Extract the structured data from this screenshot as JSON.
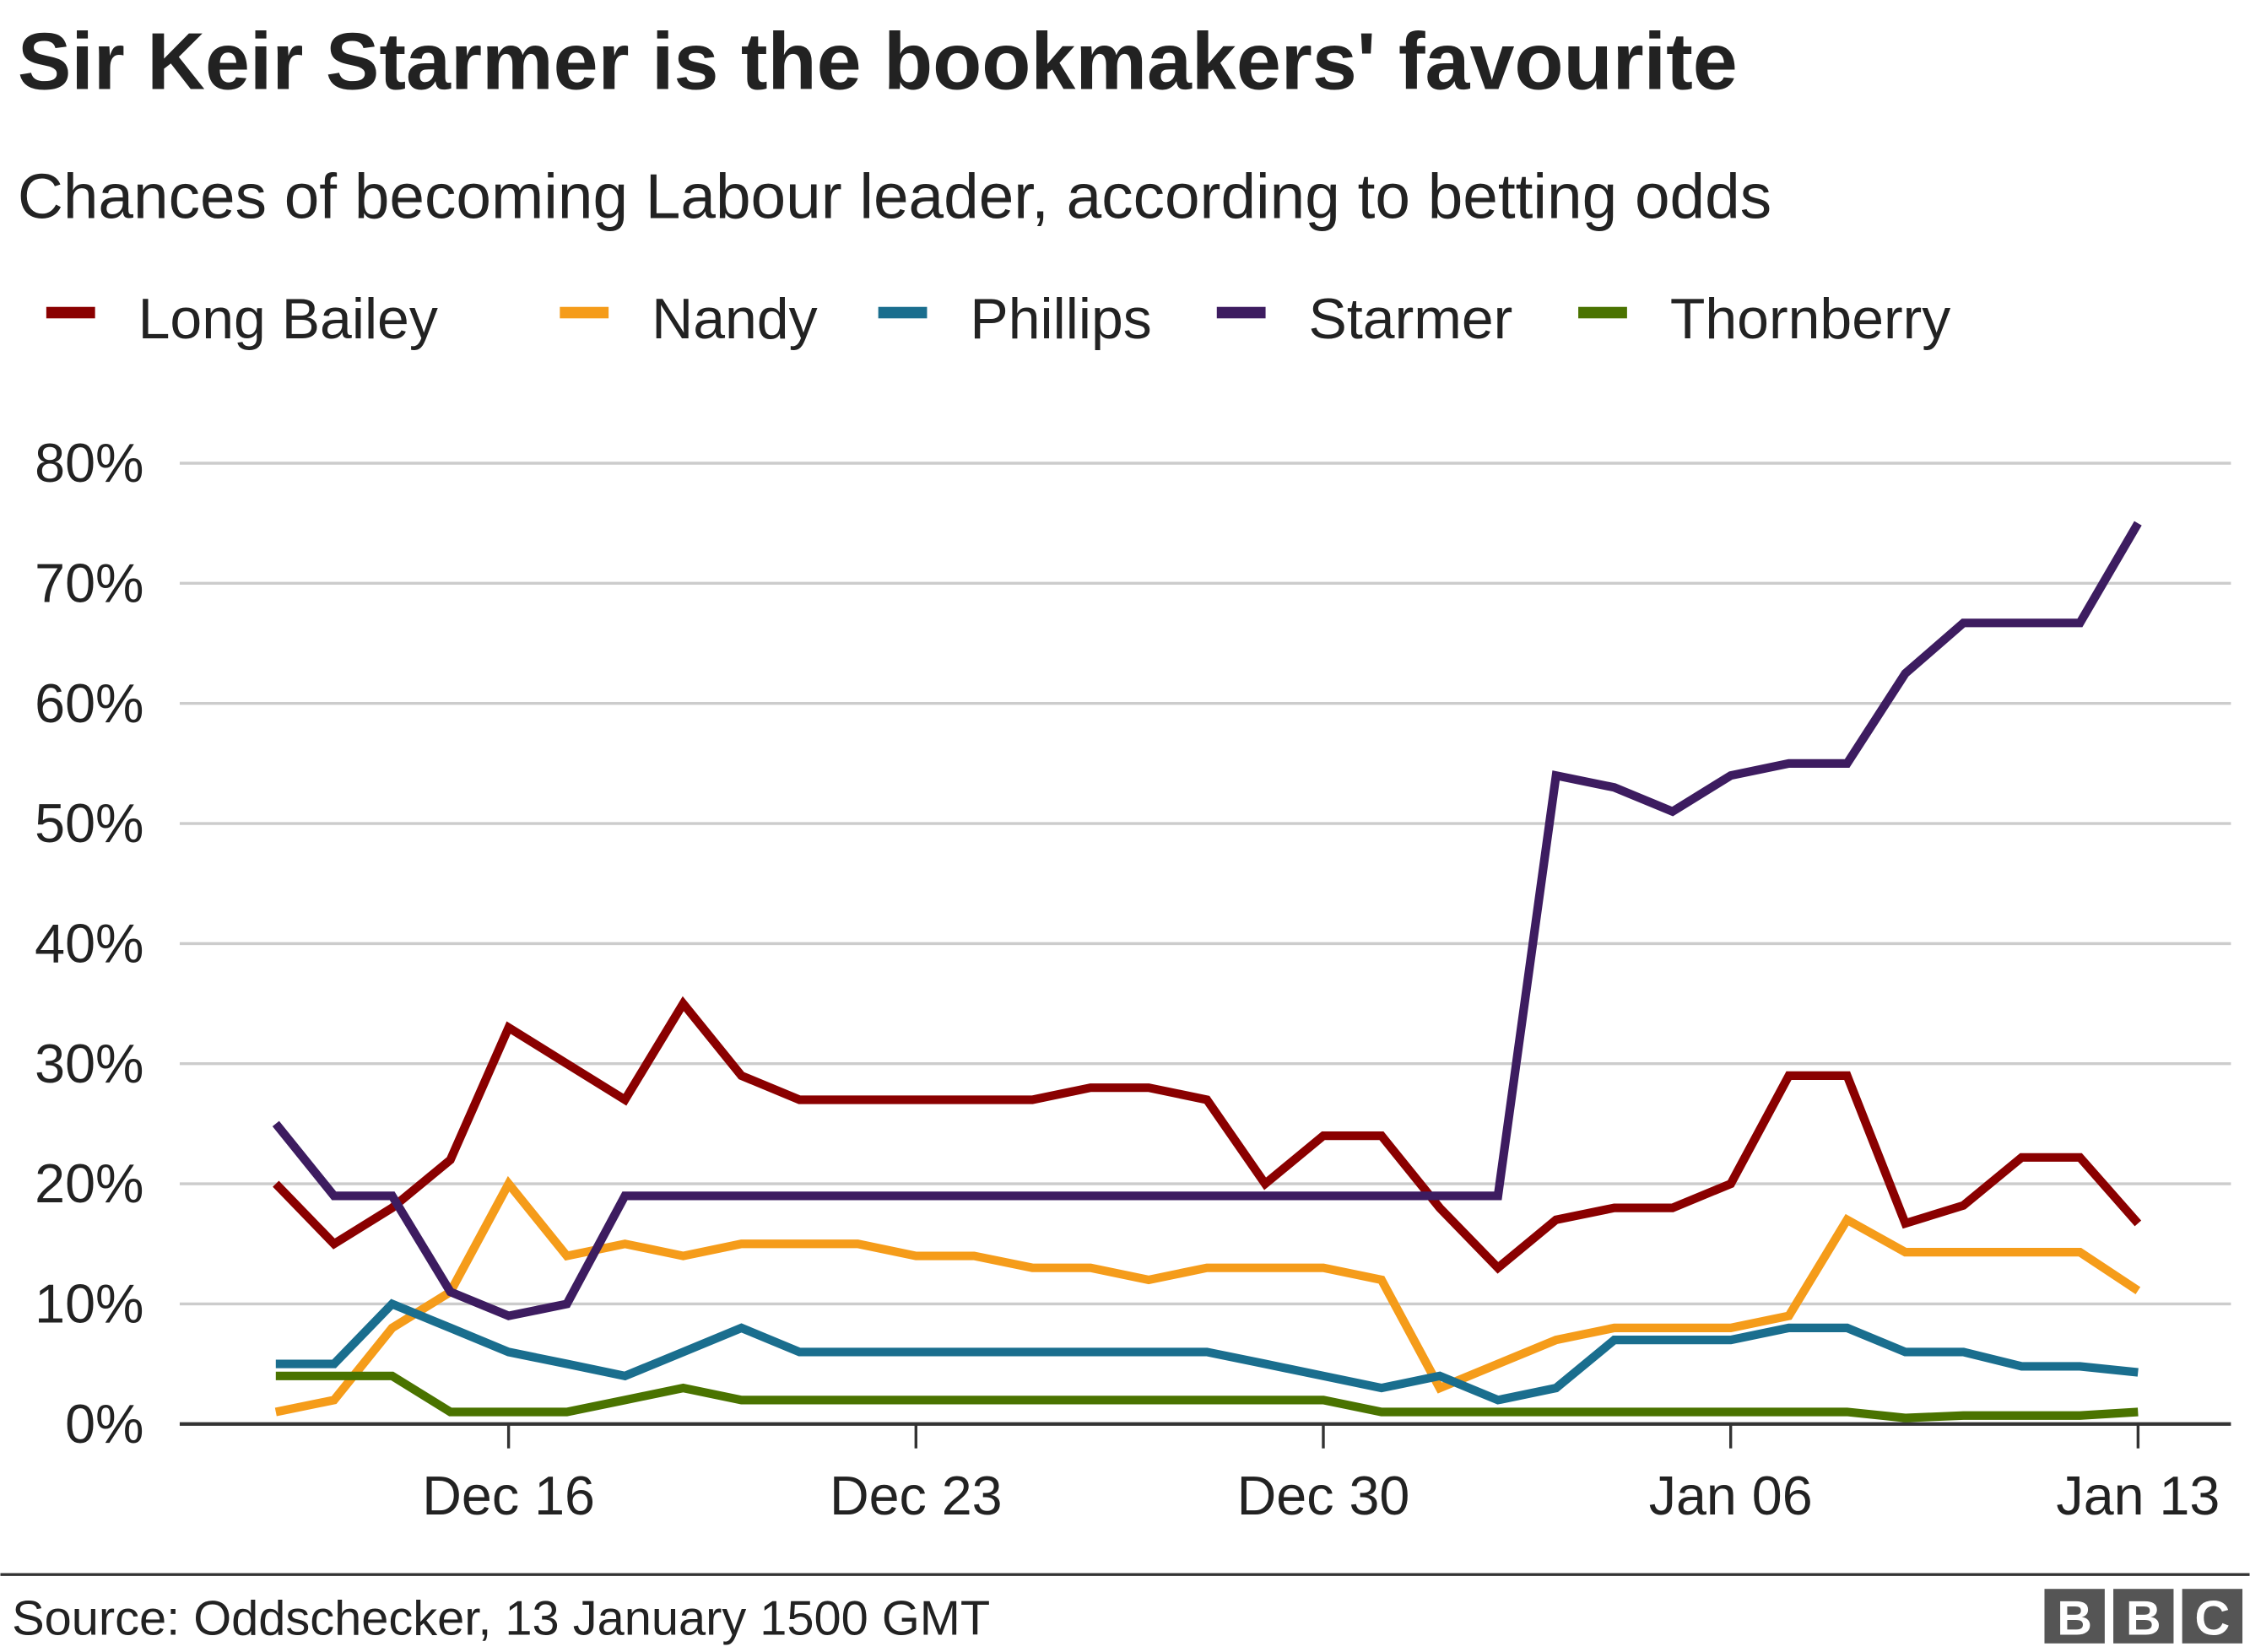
{
  "chart_data": {
    "type": "line",
    "title": "Sir Keir Starmer is the bookmakers' favourite",
    "subtitle": "Chances of becoming Labour leader, according to betting odds",
    "xlabel": "",
    "ylabel": "",
    "ylim": [
      0,
      80
    ],
    "y_ticks": [
      "0%",
      "10%",
      "20%",
      "30%",
      "40%",
      "50%",
      "60%",
      "70%",
      "80%"
    ],
    "x_ticks": [
      "Dec 16",
      "Dec 23",
      "Dec 30",
      "Jan 06",
      "Jan 13"
    ],
    "x_tick_days": [
      4,
      11,
      18,
      25,
      32
    ],
    "x": [
      "Dec 12",
      "Dec 13",
      "Dec 14",
      "Dec 15",
      "Dec 16",
      "Dec 17",
      "Dec 18",
      "Dec 19",
      "Dec 20",
      "Dec 21",
      "Dec 22",
      "Dec 23",
      "Dec 24",
      "Dec 25",
      "Dec 26",
      "Dec 27",
      "Dec 28",
      "Dec 29",
      "Dec 30",
      "Dec 31",
      "Jan 01",
      "Jan 02",
      "Jan 03",
      "Jan 04",
      "Jan 05",
      "Jan 06",
      "Jan 07",
      "Jan 08",
      "Jan 09",
      "Jan 10",
      "Jan 11",
      "Jan 12",
      "Jan 13"
    ],
    "grid": true,
    "legend_position": "top",
    "series": [
      {
        "name": "Long Bailey",
        "color": "#8a0000",
        "values": [
          20,
          15,
          18,
          22,
          33,
          30,
          27,
          35,
          29,
          27,
          27,
          27,
          27,
          27,
          28,
          28,
          27,
          20,
          24,
          24,
          18,
          13,
          17,
          18,
          18,
          20,
          29,
          29,
          16.7,
          18.2,
          22.2,
          22.2,
          16.7
        ]
      },
      {
        "name": "Nandy",
        "color": "#f59c1a",
        "values": [
          1,
          2,
          8,
          11,
          20,
          14,
          15,
          14,
          15,
          15,
          15,
          14,
          14,
          13,
          13,
          12,
          13,
          13,
          13,
          12,
          3,
          5,
          7,
          8,
          8,
          8,
          9,
          17,
          14.3,
          14.3,
          14.3,
          14.3,
          11.1
        ]
      },
      {
        "name": "Phillips",
        "color": "#1a6e8e",
        "values": [
          5,
          5,
          10,
          8,
          6,
          5,
          4,
          6,
          8,
          6,
          6,
          6,
          6,
          6,
          6,
          6,
          6,
          5,
          4,
          3,
          4,
          2,
          3,
          7,
          7,
          7,
          8,
          8,
          6,
          6,
          4.8,
          4.8,
          4.3
        ]
      },
      {
        "name": "Starmer",
        "color": "#3d1c60",
        "values": [
          25,
          19,
          19,
          11,
          9,
          10,
          19,
          19,
          19,
          19,
          19,
          19,
          19,
          19,
          19,
          19,
          19,
          19,
          19,
          19,
          19,
          19,
          54,
          53,
          51,
          54,
          55,
          55,
          62.5,
          66.7,
          66.7,
          66.7,
          75
        ]
      },
      {
        "name": "Thornberry",
        "color": "#4a7300",
        "values": [
          4,
          4,
          4,
          1,
          1,
          1,
          2,
          3,
          2,
          2,
          2,
          2,
          2,
          2,
          2,
          2,
          2,
          2,
          2,
          1,
          1,
          1,
          1,
          1,
          1,
          1,
          1,
          1,
          0.5,
          0.7,
          0.7,
          0.7,
          1
        ]
      }
    ],
    "source": "Source: Oddschecker, 13 January 1500 GMT",
    "logo": "BBC"
  }
}
